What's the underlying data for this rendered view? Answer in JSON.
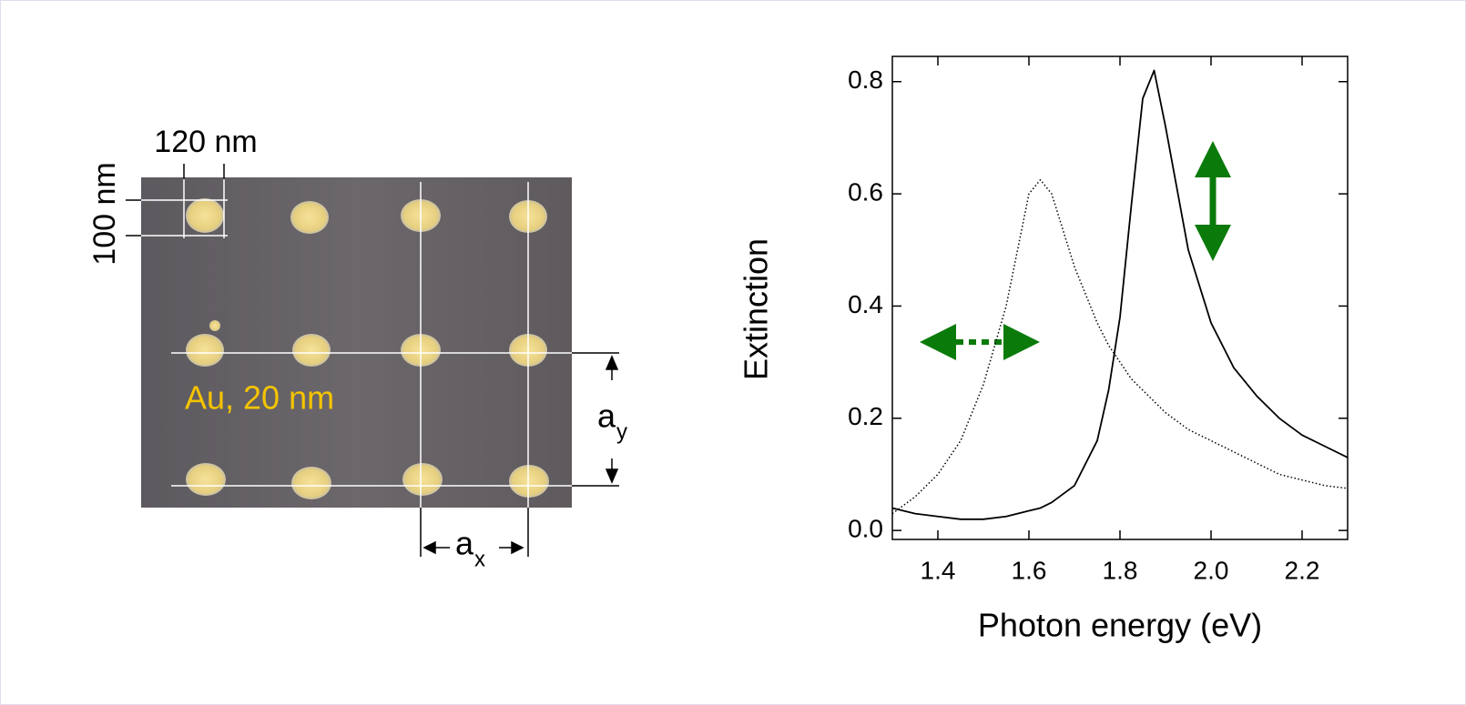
{
  "image_panel": {
    "width_label": "120 nm",
    "height_label": "100 nm",
    "material_label": "Au, 20 nm",
    "ax_label": {
      "base": "a",
      "sub": "x"
    },
    "ay_label": {
      "base": "a",
      "sub": "y"
    }
  },
  "chart_data": {
    "type": "line",
    "xlabel": "Photon energy (eV)",
    "ylabel": "Extinction",
    "x": [
      1.3,
      1.35,
      1.4,
      1.45,
      1.5,
      1.55,
      1.6,
      1.625,
      1.65,
      1.7,
      1.75,
      1.775,
      1.8,
      1.825,
      1.85,
      1.875,
      1.9,
      1.95,
      2.0,
      2.05,
      2.1,
      2.15,
      2.2,
      2.25,
      2.3
    ],
    "series": [
      {
        "color": "#000000",
        "dash": "solid",
        "values": [
          0.04,
          0.03,
          0.025,
          0.02,
          0.02,
          0.025,
          0.035,
          0.04,
          0.05,
          0.08,
          0.16,
          0.25,
          0.38,
          0.58,
          0.77,
          0.82,
          0.72,
          0.5,
          0.37,
          0.29,
          0.24,
          0.2,
          0.17,
          0.15,
          0.13
        ]
      },
      {
        "color": "#000000",
        "dash": "dotted",
        "values": [
          0.03,
          0.06,
          0.1,
          0.16,
          0.26,
          0.4,
          0.6,
          0.625,
          0.6,
          0.47,
          0.37,
          0.33,
          0.3,
          0.27,
          0.25,
          0.23,
          0.21,
          0.18,
          0.16,
          0.14,
          0.12,
          0.1,
          0.09,
          0.08,
          0.075
        ]
      }
    ],
    "xlim": [
      1.3,
      2.3
    ],
    "ylim": [
      -0.016,
      0.845
    ],
    "xticks": [
      1.4,
      1.6,
      1.8,
      {
        "value": 2,
        "label": "2.0"
      },
      2.2
    ],
    "yticks": [
      {
        "value": 0,
        "label": "0.0"
      },
      0.2,
      0.4,
      0.6,
      0.8
    ],
    "grid": false
  }
}
